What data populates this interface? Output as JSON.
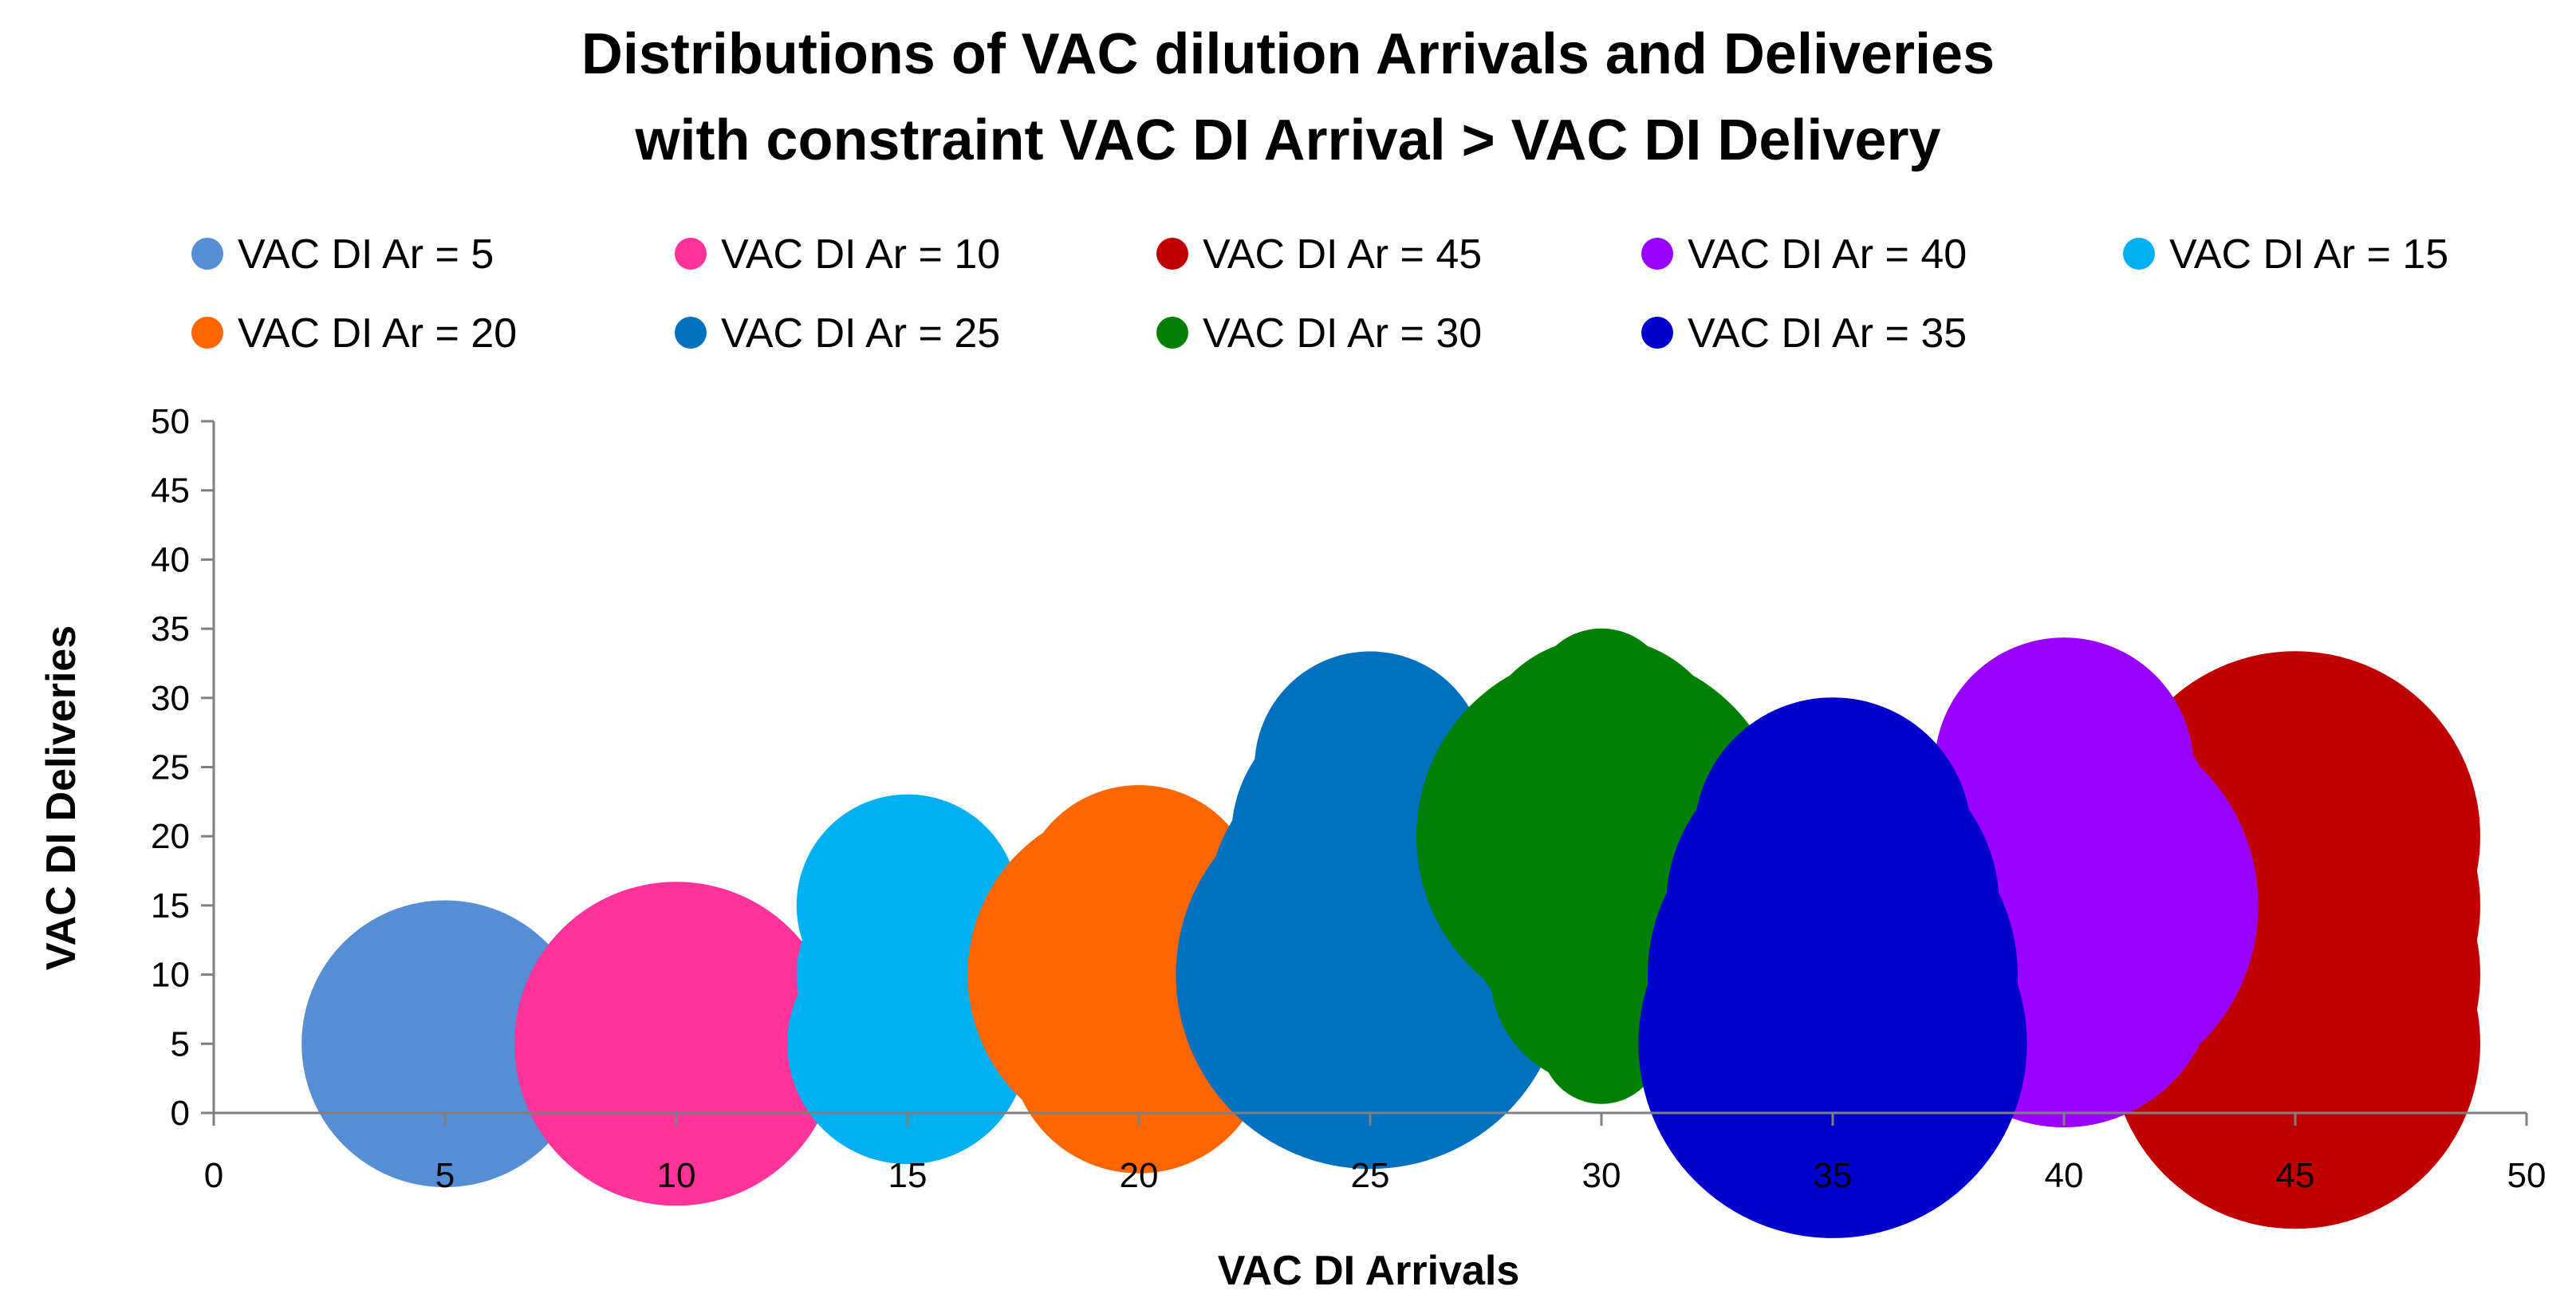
{
  "chart_data": {
    "type": "bubble",
    "title": "Distributions of VAC dilution Arrivals and Deliveries",
    "subtitle": "with constraint VAC DI Arrival > VAC DI Delivery",
    "xlabel": "VAC DI Arrivals",
    "ylabel": "VAC DI Deliveries",
    "xlim": [
      0,
      50
    ],
    "ylim": [
      0,
      50
    ],
    "xticks": [
      "0",
      "5",
      "10",
      "15",
      "20",
      "25",
      "30",
      "35",
      "40",
      "45",
      "50"
    ],
    "yticks": [
      "0",
      "5",
      "10",
      "15",
      "20",
      "25",
      "30",
      "35",
      "40",
      "45",
      "50"
    ],
    "grid": false,
    "legend_position": "top",
    "series": [
      {
        "name": "VAC DI Ar = 5",
        "color": "#558ED5",
        "points": [
          {
            "x": 5,
            "y": 5,
            "size": 3.1
          }
        ]
      },
      {
        "name": "VAC DI Ar = 10",
        "color": "#FF3399",
        "points": [
          {
            "x": 10,
            "y": 10,
            "size": 2.0
          },
          {
            "x": 10,
            "y": 5,
            "size": 3.5
          }
        ]
      },
      {
        "name": "VAC DI Ar = 45",
        "color": "#C00000",
        "points": [
          {
            "x": 45,
            "y": 20,
            "size": 4.0
          },
          {
            "x": 45,
            "y": 15,
            "size": 4.0
          },
          {
            "x": 45,
            "y": 10,
            "size": 4.0
          },
          {
            "x": 45,
            "y": 5,
            "size": 4.0
          }
        ]
      },
      {
        "name": "VAC DI Ar = 40",
        "color": "#9900FF",
        "points": [
          {
            "x": 40,
            "y": 25,
            "size": 2.8
          },
          {
            "x": 40,
            "y": 20,
            "size": 3.3
          },
          {
            "x": 40,
            "y": 15,
            "size": 4.2
          },
          {
            "x": 40,
            "y": 10,
            "size": 3.3
          },
          {
            "x": 40,
            "y": 5,
            "size": 1.4
          }
        ]
      },
      {
        "name": "VAC DI Ar = 15",
        "color": "#00B0F0",
        "points": [
          {
            "x": 15,
            "y": 15,
            "size": 2.4
          },
          {
            "x": 15,
            "y": 10,
            "size": 2.4
          },
          {
            "x": 15,
            "y": 5,
            "size": 2.6
          }
        ]
      },
      {
        "name": "VAC DI Ar = 20",
        "color": "#FF6600",
        "points": [
          {
            "x": 20,
            "y": 15,
            "size": 2.6
          },
          {
            "x": 20,
            "y": 10,
            "size": 3.7
          },
          {
            "x": 20,
            "y": 5,
            "size": 2.8
          }
        ]
      },
      {
        "name": "VAC DI Ar = 25",
        "color": "#0070C0",
        "points": [
          {
            "x": 25,
            "y": 25,
            "size": 2.5
          },
          {
            "x": 25,
            "y": 20,
            "size": 3.0
          },
          {
            "x": 25,
            "y": 15,
            "size": 3.5
          },
          {
            "x": 25,
            "y": 10,
            "size": 4.2
          },
          {
            "x": 25,
            "y": 5,
            "size": 2.7
          }
        ]
      },
      {
        "name": "VAC DI Ar = 30",
        "color": "#008000",
        "points": [
          {
            "x": 30,
            "y": 30,
            "size": 1.5
          },
          {
            "x": 30,
            "y": 25,
            "size": 2.8
          },
          {
            "x": 30,
            "y": 20,
            "size": 4.0
          },
          {
            "x": 30,
            "y": 15,
            "size": 3.0
          },
          {
            "x": 30,
            "y": 10,
            "size": 2.4
          },
          {
            "x": 30,
            "y": 5,
            "size": 1.3
          }
        ]
      },
      {
        "name": "VAC DI Ar = 35",
        "color": "#0000CC",
        "points": [
          {
            "x": 35,
            "y": 20,
            "size": 3.0
          },
          {
            "x": 35,
            "y": 15,
            "size": 3.6
          },
          {
            "x": 35,
            "y": 10,
            "size": 4.0
          },
          {
            "x": 35,
            "y": 5,
            "size": 4.2
          }
        ]
      }
    ]
  }
}
